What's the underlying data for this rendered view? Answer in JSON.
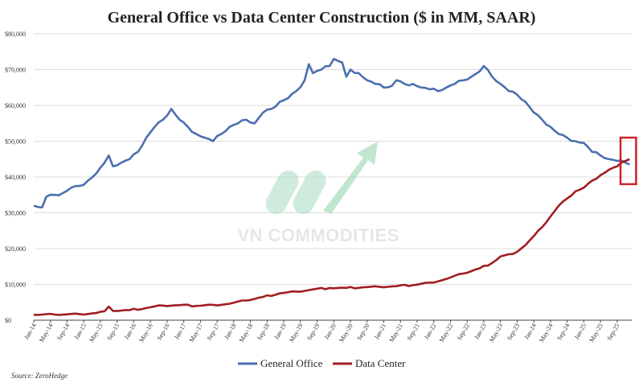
{
  "watermark": {
    "text": "VN COMMODITIES"
  },
  "source": "Source: ZeroHedge",
  "colors": {
    "general_office": "#4a6fb0",
    "data_center": "#a11d21",
    "highlight_box": "#c8232a",
    "watermark_accent": "#3cb878"
  },
  "chart_data": {
    "type": "line",
    "title": "General Office vs Data Center Construction ($ in MM, SAAR)",
    "xlabel": "",
    "ylabel": "",
    "ylim": [
      0,
      80000
    ],
    "yticks": [
      "$0",
      "$10,000",
      "$20,000",
      "$30,000",
      "$40,000",
      "$50,000",
      "$60,000",
      "$70,000",
      "$80,000"
    ],
    "xticks": [
      "Jan-14",
      "May-14",
      "Sep-14",
      "Jan-15",
      "May-15",
      "Sep-15",
      "Jan-16",
      "May-16",
      "Sep-16",
      "Jan-17",
      "May-17",
      "Sep-17",
      "Jan-18",
      "May-18",
      "Sep-18",
      "Jan-19",
      "May-19",
      "Sep-19",
      "Jan-20",
      "May-20",
      "Sep-20",
      "Jan-21",
      "May-21",
      "Sep-21",
      "Jan-22",
      "May-22",
      "Sep-22",
      "Jan-23",
      "May-23",
      "Sep-23",
      "Jan-24",
      "May-24",
      "Sep-24",
      "Jan-25",
      "May-25",
      "Sep-25"
    ],
    "legend": "bottom",
    "grid": true,
    "series": [
      {
        "name": "General Office",
        "points": [
          [
            "2014-01",
            32000
          ],
          [
            "2014-03",
            31500
          ],
          [
            "2014-04",
            34500
          ],
          [
            "2014-06",
            35000
          ],
          [
            "2014-08",
            35500
          ],
          [
            "2014-10",
            37000
          ],
          [
            "2014-12",
            37500
          ],
          [
            "2015-02",
            39000
          ],
          [
            "2015-04",
            41000
          ],
          [
            "2015-06",
            44000
          ],
          [
            "2015-07",
            46000
          ],
          [
            "2015-08",
            43000
          ],
          [
            "2015-10",
            44000
          ],
          [
            "2015-12",
            45000
          ],
          [
            "2016-02",
            47000
          ],
          [
            "2016-04",
            51000
          ],
          [
            "2016-06",
            54000
          ],
          [
            "2016-08",
            56000
          ],
          [
            "2016-10",
            59000
          ],
          [
            "2016-12",
            56000
          ],
          [
            "2017-02",
            54000
          ],
          [
            "2017-04",
            52000
          ],
          [
            "2017-06",
            51000
          ],
          [
            "2017-08",
            50000
          ],
          [
            "2017-10",
            52000
          ],
          [
            "2017-12",
            54000
          ],
          [
            "2018-02",
            55000
          ],
          [
            "2018-04",
            56000
          ],
          [
            "2018-06",
            55000
          ],
          [
            "2018-08",
            58000
          ],
          [
            "2018-10",
            59000
          ],
          [
            "2018-12",
            61000
          ],
          [
            "2019-02",
            62000
          ],
          [
            "2019-04",
            64000
          ],
          [
            "2019-06",
            67000
          ],
          [
            "2019-07",
            71500
          ],
          [
            "2019-08",
            69000
          ],
          [
            "2019-10",
            70000
          ],
          [
            "2019-12",
            71000
          ],
          [
            "2020-01",
            73000
          ],
          [
            "2020-03",
            72000
          ],
          [
            "2020-04",
            68000
          ],
          [
            "2020-05",
            70000
          ],
          [
            "2020-07",
            69000
          ],
          [
            "2020-09",
            67000
          ],
          [
            "2020-11",
            66000
          ],
          [
            "2021-01",
            65000
          ],
          [
            "2021-03",
            65500
          ],
          [
            "2021-04",
            67000
          ],
          [
            "2021-06",
            66000
          ],
          [
            "2021-08",
            66000
          ],
          [
            "2021-10",
            65000
          ],
          [
            "2021-12",
            64500
          ],
          [
            "2022-02",
            64000
          ],
          [
            "2022-04",
            65000
          ],
          [
            "2022-06",
            66000
          ],
          [
            "2022-08",
            67000
          ],
          [
            "2022-10",
            68000
          ],
          [
            "2022-12",
            69500
          ],
          [
            "2023-01",
            71000
          ],
          [
            "2023-03",
            68000
          ],
          [
            "2023-05",
            66000
          ],
          [
            "2023-07",
            64000
          ],
          [
            "2023-09",
            63000
          ],
          [
            "2023-11",
            61000
          ],
          [
            "2024-01",
            58000
          ],
          [
            "2024-03",
            56000
          ],
          [
            "2024-05",
            54000
          ],
          [
            "2024-07",
            52000
          ],
          [
            "2024-09",
            51000
          ],
          [
            "2024-11",
            50000
          ],
          [
            "2025-01",
            49500
          ],
          [
            "2025-03",
            47000
          ],
          [
            "2025-05",
            46000
          ],
          [
            "2025-07",
            45000
          ],
          [
            "2025-09",
            44500
          ],
          [
            "2025-11",
            44000
          ],
          [
            "2025-12",
            43500
          ]
        ]
      },
      {
        "name": "Data Center",
        "points": [
          [
            "2014-01",
            1500
          ],
          [
            "2014-06",
            1600
          ],
          [
            "2014-12",
            1700
          ],
          [
            "2015-04",
            2000
          ],
          [
            "2015-06",
            2500
          ],
          [
            "2015-07",
            3800
          ],
          [
            "2015-08",
            2600
          ],
          [
            "2015-12",
            2800
          ],
          [
            "2016-04",
            3400
          ],
          [
            "2016-08",
            4100
          ],
          [
            "2016-12",
            4200
          ],
          [
            "2017-04",
            4000
          ],
          [
            "2017-08",
            4300
          ],
          [
            "2017-12",
            4600
          ],
          [
            "2018-04",
            5500
          ],
          [
            "2018-08",
            6500
          ],
          [
            "2018-12",
            7500
          ],
          [
            "2019-04",
            8000
          ],
          [
            "2019-08",
            8600
          ],
          [
            "2019-12",
            9000
          ],
          [
            "2020-04",
            9000
          ],
          [
            "2020-08",
            9200
          ],
          [
            "2020-12",
            9300
          ],
          [
            "2021-04",
            9500
          ],
          [
            "2021-08",
            9800
          ],
          [
            "2021-12",
            10500
          ],
          [
            "2022-04",
            11500
          ],
          [
            "2022-08",
            13000
          ],
          [
            "2022-12",
            14500
          ],
          [
            "2023-03",
            16000
          ],
          [
            "2023-05",
            17800
          ],
          [
            "2023-08",
            18500
          ],
          [
            "2023-11",
            21000
          ],
          [
            "2024-01",
            23500
          ],
          [
            "2024-03",
            26000
          ],
          [
            "2024-05",
            29000
          ],
          [
            "2024-07",
            32000
          ],
          [
            "2024-09",
            34000
          ],
          [
            "2024-11",
            36000
          ],
          [
            "2025-01",
            37000
          ],
          [
            "2025-03",
            39000
          ],
          [
            "2025-05",
            40500
          ],
          [
            "2025-07",
            42000
          ],
          [
            "2025-09",
            43000
          ],
          [
            "2025-11",
            44500
          ],
          [
            "2025-12",
            45000
          ]
        ]
      }
    ],
    "annotation": {
      "type": "box",
      "x": [
        "2025-10",
        "2025-12"
      ],
      "y": [
        38000,
        51000
      ]
    }
  }
}
